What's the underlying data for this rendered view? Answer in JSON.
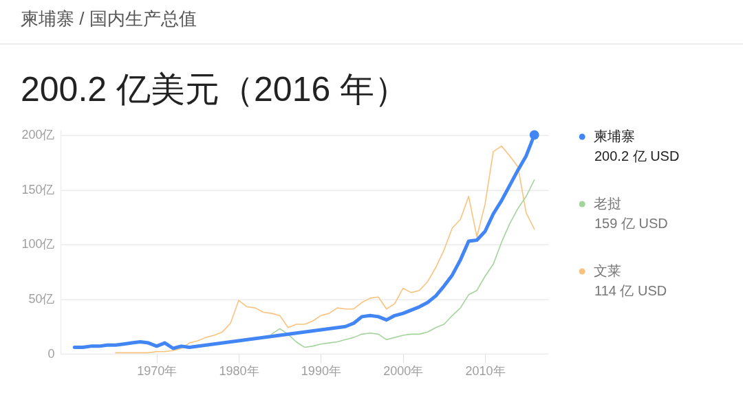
{
  "chart_data": {
    "type": "line",
    "title": "200.2 亿美元（2016 年）",
    "annotations": [
      "柬埔寨 / 国内生产总值",
      "200.2 亿 USD",
      "159 亿 USD",
      "114 亿 USD"
    ],
    "series": [
      {
        "name": "柬埔寨",
        "color": "#4285f4",
        "x": [
          1960,
          1961,
          1962,
          1963,
          1964,
          1965,
          1966,
          1967,
          1968,
          1969,
          1970,
          1971,
          1972,
          1973,
          1974,
          1993,
          1994,
          1995,
          1996,
          1997,
          1998,
          1999,
          2000,
          2001,
          2002,
          2003,
          2004,
          2005,
          2006,
          2007,
          2008,
          2009,
          2010,
          2011,
          2012,
          2013,
          2014,
          2015,
          2016
        ],
        "values": [
          6,
          6,
          7,
          7,
          8,
          8,
          9,
          10,
          11,
          10,
          7,
          10,
          5,
          7,
          6,
          25,
          28,
          34,
          35,
          34,
          31,
          35,
          37,
          40,
          43,
          47,
          53,
          62,
          72,
          86,
          103,
          104,
          112,
          128,
          140,
          154,
          168,
          181,
          200.2
        ]
      },
      {
        "name": "老挝",
        "color": "#a3d49b",
        "x": [
          1984,
          1985,
          1986,
          1987,
          1988,
          1989,
          1990,
          1991,
          1992,
          1993,
          1994,
          1995,
          1996,
          1997,
          1998,
          1999,
          2000,
          2001,
          2002,
          2003,
          2004,
          2005,
          2006,
          2007,
          2008,
          2009,
          2010,
          2011,
          2012,
          2013,
          2014,
          2015,
          2016
        ],
        "values": [
          18,
          23,
          18,
          11,
          6,
          7,
          9,
          10,
          11,
          13,
          15,
          18,
          19,
          18,
          13,
          15,
          17,
          18,
          18,
          20,
          24,
          27,
          35,
          42,
          54,
          58,
          71,
          82,
          102,
          119,
          133,
          144,
          159
        ]
      },
      {
        "name": "文莱",
        "color": "#f9c37f",
        "x": [
          1965,
          1966,
          1967,
          1968,
          1969,
          1970,
          1971,
          1972,
          1973,
          1974,
          1975,
          1976,
          1977,
          1978,
          1979,
          1980,
          1981,
          1982,
          1983,
          1984,
          1985,
          1986,
          1987,
          1988,
          1989,
          1990,
          1991,
          1992,
          1993,
          1994,
          1995,
          1996,
          1997,
          1998,
          1999,
          2000,
          2001,
          2002,
          2003,
          2004,
          2005,
          2006,
          2007,
          2008,
          2009,
          2010,
          2011,
          2012,
          2013,
          2014,
          2015,
          2016
        ],
        "values": [
          1,
          1,
          1,
          1,
          1,
          2,
          2,
          3,
          5,
          10,
          12,
          15,
          17,
          20,
          28,
          49,
          43,
          42,
          38,
          37,
          35,
          24,
          27,
          27,
          30,
          35,
          37,
          42,
          41,
          41,
          47,
          51,
          52,
          41,
          46,
          60,
          56,
          58,
          66,
          79,
          95,
          115,
          123,
          144,
          107,
          137,
          185,
          190,
          181,
          171,
          129,
          114
        ]
      },
      {
        "type": "scatter",
        "color": "#4285f4",
        "x": [
          2016
        ],
        "values": [
          200.2
        ]
      }
    ],
    "xlim": [
      1958.3,
      2017.7
    ],
    "xticks": [
      {
        "value": 1970,
        "label": "1970年"
      },
      {
        "value": 1980,
        "label": "1980年"
      },
      {
        "value": 1990,
        "label": "1990年"
      },
      {
        "value": 2000,
        "label": "2000年"
      },
      {
        "value": 2010,
        "label": "2010年"
      }
    ],
    "ylim": [
      0,
      205
    ],
    "yticks": [
      0,
      {
        "value": 50,
        "label": "50亿"
      },
      {
        "value": 100,
        "label": "100亿"
      },
      {
        "value": 150,
        "label": "150亿"
      },
      {
        "value": 200,
        "label": "200亿"
      }
    ],
    "grid": "y",
    "legend": "right"
  }
}
